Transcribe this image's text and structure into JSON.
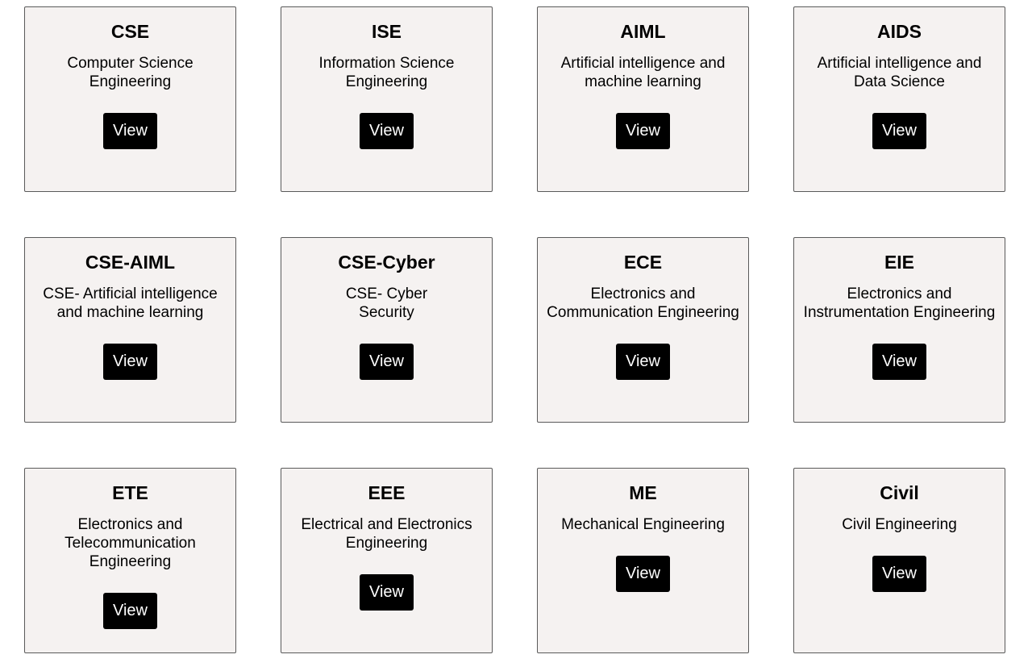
{
  "departments": [
    {
      "code": "CSE",
      "name": "Computer Science\nEngineering",
      "button": "View"
    },
    {
      "code": "ISE",
      "name": "Information Science\nEngineering",
      "button": "View"
    },
    {
      "code": "AIML",
      "name": "Artificial intelligence and\nmachine learning",
      "button": "View"
    },
    {
      "code": "AIDS",
      "name": "Artificial intelligence and\nData Science",
      "button": "View"
    },
    {
      "code": "CSE-AIML",
      "name": "CSE- Artificial intelligence\nand machine learning",
      "button": "View"
    },
    {
      "code": "CSE-Cyber",
      "name": "CSE- Cyber\nSecurity",
      "button": "View"
    },
    {
      "code": "ECE",
      "name": "Electronics and\nCommunication Engineering",
      "button": "View"
    },
    {
      "code": "EIE",
      "name": "Electronics and\nInstrumentation Engineering",
      "button": "View"
    },
    {
      "code": "ETE",
      "name": "Electronics and\nTelecommunication\nEngineering",
      "button": "View"
    },
    {
      "code": "EEE",
      "name": "Electrical and Electronics\nEngineering",
      "button": "View"
    },
    {
      "code": "ME",
      "name": "Mechanical Engineering",
      "button": "View"
    },
    {
      "code": "Civil",
      "name": "Civil Engineering",
      "button": "View"
    }
  ],
  "colors": {
    "card_background": "#f5f2f1",
    "card_border": "#5a5a5a",
    "button_background": "#000000",
    "button_text": "#ffffff"
  }
}
